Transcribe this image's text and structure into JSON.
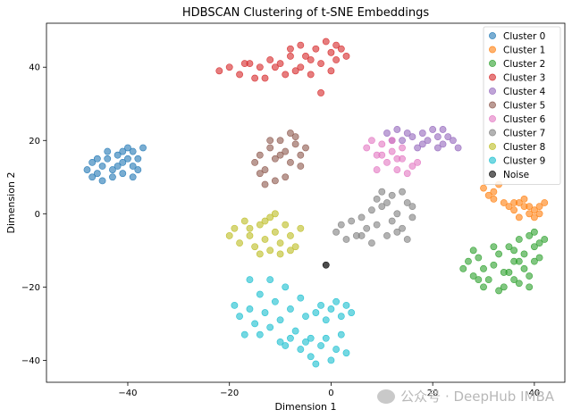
{
  "chart_data": {
    "type": "scatter",
    "title": "HDBSCAN Clustering of t-SNE Embeddings",
    "xlabel": "Dimension 1",
    "ylabel": "Dimension 2",
    "xlim": [
      -56,
      46
    ],
    "ylim": [
      -46,
      52
    ],
    "xticks": [
      -40,
      -20,
      0,
      20,
      40
    ],
    "yticks": [
      -40,
      -20,
      0,
      20,
      40
    ],
    "grid": false,
    "legend_position": "top-right",
    "series": [
      {
        "name": "Cluster 0",
        "color": "#1f77b4",
        "points": [
          [
            -48,
            12
          ],
          [
            -47,
            14
          ],
          [
            -46,
            11
          ],
          [
            -45,
            13
          ],
          [
            -44,
            15
          ],
          [
            -43,
            10
          ],
          [
            -42,
            16
          ],
          [
            -41,
            14
          ],
          [
            -40,
            18
          ],
          [
            -39,
            17
          ],
          [
            -38,
            15
          ],
          [
            -37,
            18
          ],
          [
            -45,
            9
          ],
          [
            -43,
            12
          ],
          [
            -41,
            11
          ],
          [
            -39,
            13
          ],
          [
            -47,
            10
          ],
          [
            -44,
            17
          ],
          [
            -42,
            13
          ],
          [
            -40,
            15
          ],
          [
            -38,
            12
          ],
          [
            -46,
            15
          ],
          [
            -39,
            10
          ],
          [
            -41,
            17
          ]
        ]
      },
      {
        "name": "Cluster 1",
        "color": "#ff7f0e",
        "points": [
          [
            30,
            7
          ],
          [
            31,
            5
          ],
          [
            32,
            6
          ],
          [
            33,
            8
          ],
          [
            32,
            4
          ],
          [
            34,
            3
          ],
          [
            35,
            2
          ],
          [
            36,
            1
          ],
          [
            37,
            3
          ],
          [
            38,
            2
          ],
          [
            39,
            0
          ],
          [
            40,
            1
          ],
          [
            41,
            2
          ],
          [
            42,
            3
          ],
          [
            37,
            -1
          ],
          [
            38,
            4
          ],
          [
            36,
            3
          ],
          [
            39,
            2
          ],
          [
            41,
            0
          ],
          [
            40,
            -1
          ]
        ]
      },
      {
        "name": "Cluster 2",
        "color": "#2ca02c",
        "points": [
          [
            26,
            -15
          ],
          [
            27,
            -13
          ],
          [
            28,
            -17
          ],
          [
            29,
            -12
          ],
          [
            30,
            -15
          ],
          [
            31,
            -18
          ],
          [
            32,
            -14
          ],
          [
            33,
            -11
          ],
          [
            34,
            -16
          ],
          [
            35,
            -9
          ],
          [
            36,
            -13
          ],
          [
            37,
            -7
          ],
          [
            38,
            -11
          ],
          [
            39,
            -6
          ],
          [
            40,
            -9
          ],
          [
            41,
            -8
          ],
          [
            42,
            -7
          ],
          [
            38,
            -15
          ],
          [
            36,
            -18
          ],
          [
            34,
            -20
          ],
          [
            37,
            -19
          ],
          [
            40,
            -13
          ],
          [
            39,
            -17
          ],
          [
            30,
            -20
          ],
          [
            32,
            -9
          ],
          [
            35,
            -16
          ],
          [
            41,
            -12
          ],
          [
            28,
            -10
          ],
          [
            33,
            -21
          ],
          [
            39,
            -20
          ],
          [
            37,
            -13
          ],
          [
            29,
            -18
          ],
          [
            40,
            -5
          ],
          [
            36,
            -10
          ]
        ]
      },
      {
        "name": "Cluster 3",
        "color": "#d62728",
        "points": [
          [
            -22,
            39
          ],
          [
            -20,
            40
          ],
          [
            -18,
            38
          ],
          [
            -16,
            41
          ],
          [
            -14,
            40
          ],
          [
            -12,
            42
          ],
          [
            -10,
            41
          ],
          [
            -8,
            43
          ],
          [
            -6,
            40
          ],
          [
            -4,
            42
          ],
          [
            -2,
            41
          ],
          [
            0,
            44
          ],
          [
            1,
            42
          ],
          [
            2,
            45
          ],
          [
            3,
            43
          ],
          [
            -1,
            47
          ],
          [
            -3,
            45
          ],
          [
            -5,
            43
          ],
          [
            -7,
            39
          ],
          [
            -9,
            38
          ],
          [
            -11,
            40
          ],
          [
            -13,
            37
          ],
          [
            -2,
            33
          ],
          [
            -17,
            41
          ],
          [
            -15,
            37
          ],
          [
            -6,
            46
          ],
          [
            0,
            39
          ],
          [
            -4,
            38
          ],
          [
            -8,
            45
          ],
          [
            1,
            46
          ]
        ]
      },
      {
        "name": "Cluster 4",
        "color": "#9467bd",
        "points": [
          [
            11,
            22
          ],
          [
            13,
            23
          ],
          [
            14,
            20
          ],
          [
            16,
            21
          ],
          [
            17,
            18
          ],
          [
            18,
            22
          ],
          [
            19,
            20
          ],
          [
            20,
            23
          ],
          [
            21,
            18
          ],
          [
            22,
            19
          ],
          [
            23,
            21
          ],
          [
            24,
            20
          ],
          [
            25,
            18
          ],
          [
            15,
            22
          ],
          [
            18,
            19
          ],
          [
            21,
            21
          ],
          [
            12,
            20
          ],
          [
            22,
            23
          ]
        ]
      },
      {
        "name": "Cluster 5",
        "color": "#8c564b",
        "points": [
          [
            -15,
            14
          ],
          [
            -14,
            16
          ],
          [
            -13,
            12
          ],
          [
            -12,
            18
          ],
          [
            -11,
            15
          ],
          [
            -10,
            20
          ],
          [
            -9,
            17
          ],
          [
            -8,
            14
          ],
          [
            -7,
            19
          ],
          [
            -6,
            13
          ],
          [
            -5,
            18
          ],
          [
            -9,
            10
          ],
          [
            -11,
            9
          ],
          [
            -13,
            8
          ],
          [
            -12,
            20
          ],
          [
            -10,
            16
          ],
          [
            -8,
            22
          ],
          [
            -6,
            16
          ],
          [
            -14,
            11
          ],
          [
            -7,
            21
          ]
        ]
      },
      {
        "name": "Cluster 6",
        "color": "#e377c2",
        "points": [
          [
            7,
            18
          ],
          [
            8,
            20
          ],
          [
            9,
            16
          ],
          [
            10,
            19
          ],
          [
            11,
            14
          ],
          [
            12,
            17
          ],
          [
            13,
            12
          ],
          [
            14,
            15
          ],
          [
            15,
            11
          ],
          [
            16,
            13
          ],
          [
            17,
            14
          ],
          [
            12,
            20
          ],
          [
            9,
            12
          ],
          [
            14,
            18
          ],
          [
            10,
            16
          ],
          [
            13,
            15
          ]
        ]
      },
      {
        "name": "Cluster 7",
        "color": "#7f7f7f",
        "points": [
          [
            1,
            -5
          ],
          [
            2,
            -3
          ],
          [
            3,
            -7
          ],
          [
            4,
            -2
          ],
          [
            5,
            -6
          ],
          [
            6,
            -1
          ],
          [
            7,
            -4
          ],
          [
            8,
            1
          ],
          [
            9,
            -3
          ],
          [
            10,
            2
          ],
          [
            11,
            -6
          ],
          [
            12,
            -2
          ],
          [
            13,
            0
          ],
          [
            14,
            -4
          ],
          [
            15,
            3
          ],
          [
            16,
            -1
          ],
          [
            10,
            6
          ],
          [
            12,
            5
          ],
          [
            14,
            6
          ],
          [
            8,
            -8
          ],
          [
            6,
            -6
          ],
          [
            15,
            -7
          ],
          [
            13,
            -5
          ],
          [
            11,
            3
          ],
          [
            9,
            4
          ],
          [
            16,
            2
          ]
        ]
      },
      {
        "name": "Cluster 8",
        "color": "#bcbd22",
        "points": [
          [
            -20,
            -6
          ],
          [
            -19,
            -4
          ],
          [
            -18,
            -8
          ],
          [
            -17,
            -2
          ],
          [
            -16,
            -6
          ],
          [
            -15,
            -9
          ],
          [
            -14,
            -3
          ],
          [
            -13,
            -7
          ],
          [
            -12,
            -1
          ],
          [
            -11,
            -5
          ],
          [
            -10,
            -8
          ],
          [
            -9,
            -3
          ],
          [
            -8,
            -6
          ],
          [
            -7,
            -9
          ],
          [
            -6,
            -4
          ],
          [
            -10,
            -11
          ],
          [
            -12,
            -10
          ],
          [
            -14,
            -11
          ],
          [
            -11,
            0
          ],
          [
            -16,
            -4
          ],
          [
            -8,
            -10
          ],
          [
            -13,
            -2
          ]
        ]
      },
      {
        "name": "Cluster 9",
        "color": "#17becf",
        "points": [
          [
            -19,
            -25
          ],
          [
            -18,
            -28
          ],
          [
            -17,
            -33
          ],
          [
            -16,
            -26
          ],
          [
            -15,
            -30
          ],
          [
            -14,
            -22
          ],
          [
            -13,
            -27
          ],
          [
            -12,
            -31
          ],
          [
            -11,
            -24
          ],
          [
            -10,
            -29
          ],
          [
            -9,
            -20
          ],
          [
            -8,
            -26
          ],
          [
            -7,
            -32
          ],
          [
            -6,
            -23
          ],
          [
            -5,
            -28
          ],
          [
            -4,
            -34
          ],
          [
            -3,
            -27
          ],
          [
            -2,
            -25
          ],
          [
            -1,
            -29
          ],
          [
            0,
            -26
          ],
          [
            1,
            -24
          ],
          [
            2,
            -28
          ],
          [
            3,
            -25
          ],
          [
            -6,
            -37
          ],
          [
            -4,
            -39
          ],
          [
            -2,
            -36
          ],
          [
            0,
            -40
          ],
          [
            -1,
            -34
          ],
          [
            1,
            -37
          ],
          [
            2,
            -33
          ],
          [
            3,
            -38
          ],
          [
            -3,
            -41
          ],
          [
            -5,
            -35
          ],
          [
            -8,
            -34
          ],
          [
            -16,
            -18
          ],
          [
            -12,
            -18
          ],
          [
            -10,
            -35
          ],
          [
            -14,
            -33
          ],
          [
            4,
            -27
          ],
          [
            -9,
            -36
          ]
        ]
      },
      {
        "name": "Noise",
        "color": "#000000",
        "points": [
          [
            -1,
            -14
          ]
        ]
      }
    ]
  }
}
